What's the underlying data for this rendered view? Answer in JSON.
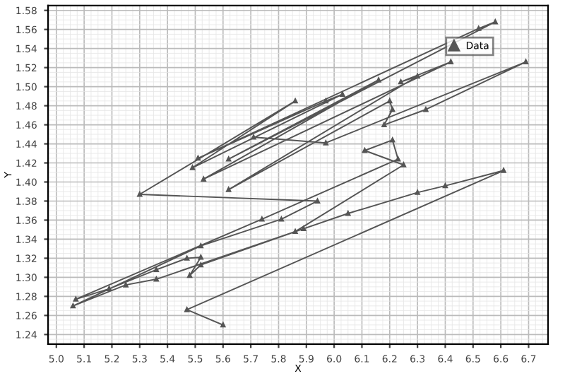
{
  "chart_data": {
    "type": "line",
    "xlabel": "X",
    "ylabel": "Y",
    "x": [
      5.6,
      5.47,
      6.61,
      6.4,
      6.3,
      6.05,
      5.89,
      5.52,
      5.48,
      5.52,
      5.47,
      5.36,
      5.19,
      5.07,
      5.74,
      6.23,
      6.21,
      6.11,
      6.25,
      5.86,
      5.36,
      5.25,
      5.06,
      5.52,
      5.81,
      5.94,
      5.3,
      5.86,
      5.49,
      6.03,
      5.97,
      5.51,
      6.52,
      6.58,
      5.62,
      6.16,
      5.53,
      6.42,
      6.24,
      6.3,
      5.62,
      6.2,
      6.21,
      6.18,
      6.33,
      6.69,
      5.97,
      5.71
    ],
    "series": [
      {
        "name": "Data",
        "color": "#555555",
        "values": [
          1.25,
          1.266,
          1.412,
          1.396,
          1.389,
          1.367,
          1.351,
          1.313,
          1.302,
          1.321,
          1.32,
          1.308,
          1.288,
          1.277,
          1.361,
          1.424,
          1.444,
          1.433,
          1.418,
          1.348,
          1.298,
          1.292,
          1.27,
          1.333,
          1.361,
          1.38,
          1.387,
          1.485,
          1.415,
          1.492,
          1.485,
          1.425,
          1.561,
          1.568,
          1.424,
          1.507,
          1.403,
          1.526,
          1.505,
          1.511,
          1.392,
          1.485,
          1.476,
          1.46,
          1.476,
          1.526,
          1.441,
          1.447
        ]
      }
    ],
    "xlim": [
      4.97,
      6.77
    ],
    "ylim": [
      1.23,
      1.585
    ],
    "xticks": [
      {
        "value": 5,
        "label": "5.0"
      },
      5.1,
      5.2,
      5.3,
      5.4,
      5.5,
      5.6,
      5.7,
      5.8,
      5.9,
      {
        "value": 6,
        "label": "6.0"
      },
      6.1,
      6.2,
      6.3,
      6.4,
      6.5,
      6.6,
      6.7
    ],
    "yticks": [
      1.24,
      1.26,
      1.28,
      {
        "value": 1.3,
        "label": "1.30"
      },
      1.32,
      1.34,
      1.36,
      1.38,
      {
        "value": 1.4,
        "label": "1.40"
      },
      1.42,
      1.44,
      1.46,
      1.48,
      {
        "value": 1.5,
        "label": "1.50"
      },
      1.52,
      1.54,
      1.56,
      1.58
    ],
    "grid": true,
    "legend": "top right",
    "marker": "triangle",
    "line_style": "solid"
  }
}
